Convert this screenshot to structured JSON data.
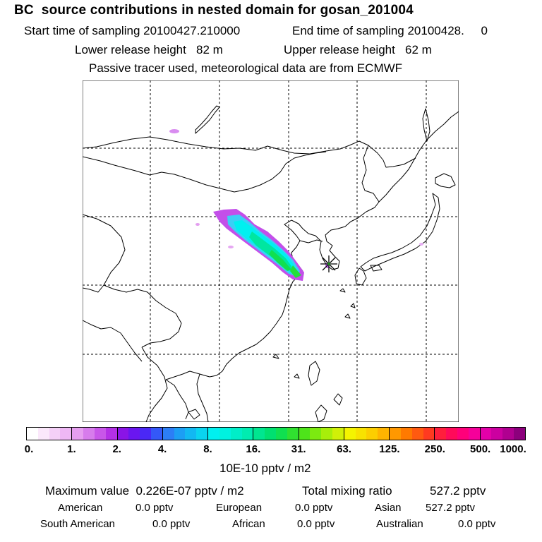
{
  "header": {
    "title": "BC  source contributions in nested domain for gosan_201004",
    "start_label": "Start time of sampling 20100427.210000",
    "end_label": "End time of sampling 20100428.     0",
    "lower_label": "Lower release height   82 m",
    "upper_label": "Upper release height   62 m",
    "info": "Passive tracer used, meteorological data are from ECMWF"
  },
  "colorbar": {
    "ticks": [
      "0.",
      "1.",
      "2.",
      "4.",
      "8.",
      "16.",
      "31.",
      "63.",
      "125.",
      "250.",
      "500.",
      "1000."
    ],
    "unit": "10E-10 pptv / m2",
    "segment_colors": [
      [
        "#ffffff",
        "#fbe8fb",
        "#f4d0f7",
        "#efb8f5"
      ],
      [
        "#e69ef0",
        "#d77cec",
        "#c856e9",
        "#b430e6"
      ],
      [
        "#8a14e6",
        "#6a16f0",
        "#4a28f6",
        "#3458f8"
      ],
      [
        "#2c7ef6",
        "#1c9ef4",
        "#12b8f2",
        "#0ad4f0"
      ],
      [
        "#00f0f0",
        "#00f2e0",
        "#00eec8",
        "#00ecb0"
      ],
      [
        "#00e690",
        "#00e070",
        "#10e050",
        "#30e030"
      ],
      [
        "#4ee41a",
        "#7cea10",
        "#a8ee0a",
        "#d0f008"
      ],
      [
        "#f4f400",
        "#f8e200",
        "#fcce00",
        "#ffb400"
      ],
      [
        "#ff9800",
        "#ff7a00",
        "#ff5a10",
        "#ff3a20"
      ],
      [
        "#ff1e3c",
        "#ff0a5a",
        "#ff007a",
        "#f6009a"
      ],
      [
        "#e400a8",
        "#cc00a0",
        "#b00090",
        "#8c007c"
      ]
    ]
  },
  "stats": {
    "max_label": "Maximum value  0.226E-07 pptv / m2",
    "total_label": "Total mixing ratio",
    "total_value": "527.2 pptv",
    "american_label": "American",
    "american_value": "0.0 pptv",
    "european_label": "European",
    "european_value": "0.0 pptv",
    "asian_label": "Asian",
    "asian_value": "527.2 pptv",
    "south_american_label": "South American",
    "south_american_value": "0.0 pptv",
    "african_label": "African",
    "african_value": "0.0 pptv",
    "australian_label": "Australian",
    "australian_value": "0.0 pptv"
  }
}
